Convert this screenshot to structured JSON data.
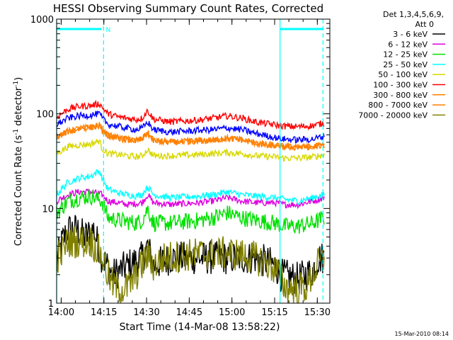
{
  "chart_data": {
    "type": "line",
    "title": "HESSI Observing Summary Count Rates, Corrected",
    "xlabel": "Start Time (14-Mar-08 13:58:22)",
    "ylabel_main": "Corrected Count Rate (s",
    "ylabel_sup1": "-1",
    "ylabel_mid": " detector",
    "ylabel_sup2": "-1",
    "ylabel_end": ")",
    "footer": "15-Mar-2010 08:14",
    "y_scale": "log",
    "ylim": [
      1,
      1000
    ],
    "xlim": [
      0,
      96
    ],
    "x_ticks": [
      {
        "t": 1.6,
        "label": "14:00"
      },
      {
        "t": 16.6,
        "label": "14:15"
      },
      {
        "t": 31.6,
        "label": "14:30"
      },
      {
        "t": 46.6,
        "label": "14:45"
      },
      {
        "t": 61.6,
        "label": "15:00"
      },
      {
        "t": 76.6,
        "label": "15:15"
      },
      {
        "t": 91.6,
        "label": "15:30"
      }
    ],
    "y_ticks": [
      {
        "v": 1,
        "label": "1"
      },
      {
        "v": 10,
        "label": "10"
      },
      {
        "v": 100,
        "label": "100"
      },
      {
        "v": 1000,
        "label": "1000"
      }
    ],
    "legend_header": [
      "Det 1,3,4,5,6,9,",
      "Att 0"
    ],
    "legend_placement": "right",
    "flag_label": "N",
    "markers": {
      "solid_cyan_x": [
        0,
        78.5
      ],
      "dashed_cyan_x": [
        16.5,
        93.6
      ],
      "top_bars": [
        [
          0,
          15.8
        ],
        [
          78.5,
          93.6
        ]
      ]
    },
    "series": [
      {
        "name": "3 - 6 keV",
        "color": "#000000",
        "points": [
          [
            0,
            2.8
          ],
          [
            2,
            4.5
          ],
          [
            4,
            6
          ],
          [
            7,
            6
          ],
          [
            10,
            5
          ],
          [
            13,
            6
          ],
          [
            16,
            3
          ],
          [
            20,
            2
          ],
          [
            25,
            2.5
          ],
          [
            30,
            3
          ],
          [
            32,
            4
          ],
          [
            34,
            2.5
          ],
          [
            40,
            3
          ],
          [
            50,
            3
          ],
          [
            60,
            3
          ],
          [
            70,
            3
          ],
          [
            77,
            2.5
          ],
          [
            78.5,
            2
          ],
          [
            85,
            1.8
          ],
          [
            90,
            2.2
          ],
          [
            92,
            3
          ],
          [
            94,
            3
          ]
        ]
      },
      {
        "name": "6 - 12 keV",
        "color": "#e000e0",
        "points": [
          [
            0,
            12
          ],
          [
            4,
            14
          ],
          [
            8,
            15
          ],
          [
            12,
            15
          ],
          [
            16,
            14
          ],
          [
            18,
            12
          ],
          [
            25,
            11
          ],
          [
            30,
            11.5
          ],
          [
            32,
            14
          ],
          [
            34,
            11.5
          ],
          [
            40,
            11
          ],
          [
            50,
            11.5
          ],
          [
            55,
            12
          ],
          [
            60,
            13
          ],
          [
            65,
            12
          ],
          [
            70,
            11.5
          ],
          [
            77,
            11.5
          ],
          [
            80,
            11
          ],
          [
            85,
            11
          ],
          [
            90,
            12
          ],
          [
            94,
            13
          ]
        ]
      },
      {
        "name": "12 - 25 keV",
        "color": "#00e000",
        "points": [
          [
            0,
            9
          ],
          [
            4,
            12
          ],
          [
            8,
            13
          ],
          [
            12,
            13.5
          ],
          [
            16,
            12
          ],
          [
            18,
            8
          ],
          [
            22,
            7.5
          ],
          [
            28,
            7
          ],
          [
            30,
            7.5
          ],
          [
            32,
            10
          ],
          [
            34,
            7
          ],
          [
            40,
            7
          ],
          [
            50,
            7.5
          ],
          [
            55,
            8
          ],
          [
            60,
            9
          ],
          [
            65,
            8
          ],
          [
            70,
            7.5
          ],
          [
            77,
            7
          ],
          [
            80,
            6.5
          ],
          [
            85,
            6.5
          ],
          [
            90,
            7
          ],
          [
            94,
            8
          ]
        ]
      },
      {
        "name": "25 - 50 keV",
        "color": "#00ffff",
        "points": [
          [
            0,
            14
          ],
          [
            4,
            19
          ],
          [
            8,
            21
          ],
          [
            12,
            22
          ],
          [
            15,
            25
          ],
          [
            16,
            21
          ],
          [
            18,
            16
          ],
          [
            22,
            14.5
          ],
          [
            28,
            13.5
          ],
          [
            30,
            14
          ],
          [
            32,
            17
          ],
          [
            34,
            14
          ],
          [
            40,
            13
          ],
          [
            50,
            13.5
          ],
          [
            55,
            14
          ],
          [
            60,
            15
          ],
          [
            65,
            14
          ],
          [
            70,
            13.5
          ],
          [
            77,
            13
          ],
          [
            80,
            12.5
          ],
          [
            85,
            12
          ],
          [
            90,
            13
          ],
          [
            94,
            14
          ]
        ]
      },
      {
        "name": "50 - 100 keV",
        "color": "#d8d800",
        "points": [
          [
            0,
            38
          ],
          [
            4,
            45
          ],
          [
            8,
            47
          ],
          [
            12,
            48
          ],
          [
            15,
            52
          ],
          [
            16,
            43
          ],
          [
            18,
            38
          ],
          [
            22,
            37
          ],
          [
            28,
            35
          ],
          [
            30,
            36
          ],
          [
            32,
            42
          ],
          [
            34,
            36
          ],
          [
            40,
            36
          ],
          [
            50,
            37
          ],
          [
            55,
            38
          ],
          [
            60,
            39
          ],
          [
            65,
            38
          ],
          [
            70,
            36
          ],
          [
            77,
            35
          ],
          [
            80,
            34
          ],
          [
            85,
            34
          ],
          [
            90,
            35
          ],
          [
            94,
            37
          ]
        ]
      },
      {
        "name": "100 - 300 keV",
        "color": "#ff0000",
        "points": [
          [
            0,
            92
          ],
          [
            4,
            112
          ],
          [
            8,
            120
          ],
          [
            12,
            122
          ],
          [
            15,
            128
          ],
          [
            16,
            118
          ],
          [
            18,
            100
          ],
          [
            22,
            92
          ],
          [
            28,
            87
          ],
          [
            30,
            90
          ],
          [
            32,
            108
          ],
          [
            34,
            88
          ],
          [
            40,
            82
          ],
          [
            50,
            86
          ],
          [
            55,
            90
          ],
          [
            60,
            95
          ],
          [
            65,
            90
          ],
          [
            70,
            82
          ],
          [
            77,
            76
          ],
          [
            80,
            74
          ],
          [
            85,
            73
          ],
          [
            90,
            75
          ],
          [
            94,
            80
          ]
        ]
      },
      {
        "name": "300 - 800 keV",
        "color": "#ff8000",
        "points": [
          [
            0,
            57
          ],
          [
            4,
            65
          ],
          [
            8,
            70
          ],
          [
            12,
            72
          ],
          [
            15,
            75
          ],
          [
            16,
            68
          ],
          [
            18,
            59
          ],
          [
            22,
            55
          ],
          [
            28,
            52
          ],
          [
            30,
            54
          ],
          [
            32,
            63
          ],
          [
            34,
            52
          ],
          [
            40,
            50
          ],
          [
            50,
            52
          ],
          [
            55,
            53
          ],
          [
            60,
            55
          ],
          [
            65,
            53
          ],
          [
            70,
            49
          ],
          [
            77,
            46
          ],
          [
            80,
            45
          ],
          [
            85,
            44
          ],
          [
            90,
            45
          ],
          [
            94,
            47
          ]
        ]
      },
      {
        "name": "800 - 7000 keV",
        "color": "#ff8000",
        "points": [
          [
            0,
            57
          ],
          [
            4,
            65
          ],
          [
            8,
            70
          ],
          [
            12,
            72
          ],
          [
            15,
            75
          ],
          [
            16,
            68
          ],
          [
            18,
            59
          ],
          [
            22,
            55
          ],
          [
            28,
            52
          ],
          [
            30,
            54
          ],
          [
            32,
            63
          ],
          [
            34,
            52
          ],
          [
            40,
            50
          ],
          [
            50,
            52
          ],
          [
            55,
            53
          ],
          [
            60,
            55
          ],
          [
            65,
            53
          ],
          [
            70,
            49
          ],
          [
            77,
            46
          ],
          [
            80,
            45
          ],
          [
            85,
            44
          ],
          [
            90,
            45
          ],
          [
            94,
            47
          ]
        ]
      },
      {
        "name": "7000 - 20000 keV",
        "color": "#808000",
        "points": [
          [
            0,
            3
          ],
          [
            2,
            3.5
          ],
          [
            4,
            4.5
          ],
          [
            8,
            4.5
          ],
          [
            12,
            4.5
          ],
          [
            15,
            3.5
          ],
          [
            16,
            3
          ],
          [
            18,
            2
          ],
          [
            20,
            1.5
          ],
          [
            24,
            1.4
          ],
          [
            26,
            1.6
          ],
          [
            28,
            2
          ],
          [
            30,
            2.5
          ],
          [
            32,
            3.2
          ],
          [
            34,
            2.5
          ],
          [
            38,
            3
          ],
          [
            45,
            3.2
          ],
          [
            50,
            3.3
          ],
          [
            55,
            3.3
          ],
          [
            60,
            3.4
          ],
          [
            65,
            3.2
          ],
          [
            70,
            3
          ],
          [
            74,
            2.6
          ],
          [
            76,
            2.4
          ],
          [
            78.5,
            2
          ],
          [
            80,
            1.5
          ],
          [
            84,
            1.4
          ],
          [
            88,
            1.5
          ],
          [
            90,
            2
          ],
          [
            92,
            2.6
          ],
          [
            94,
            2.8
          ]
        ]
      },
      {
        "name": "",
        "color": "#0000ff",
        "points": [
          [
            0,
            77
          ],
          [
            4,
            90
          ],
          [
            8,
            95
          ],
          [
            12,
            97
          ],
          [
            15,
            100
          ],
          [
            16,
            90
          ],
          [
            18,
            78
          ],
          [
            22,
            73
          ],
          [
            28,
            68
          ],
          [
            30,
            70
          ],
          [
            32,
            82
          ],
          [
            34,
            68
          ],
          [
            40,
            64
          ],
          [
            50,
            67
          ],
          [
            55,
            68
          ],
          [
            60,
            71
          ],
          [
            65,
            68
          ],
          [
            70,
            62
          ],
          [
            77,
            56
          ],
          [
            80,
            54
          ],
          [
            85,
            53
          ],
          [
            90,
            54
          ],
          [
            94,
            58
          ]
        ]
      }
    ]
  },
  "legend_rows": [
    {
      "label": "3 - 6 keV",
      "color": "#000000"
    },
    {
      "label": "6 - 12 keV",
      "color": "#e000e0"
    },
    {
      "label": "12 - 25 keV",
      "color": "#00e000"
    },
    {
      "label": "25 - 50 keV",
      "color": "#00ffff"
    },
    {
      "label": "50 - 100 keV",
      "color": "#d8d800"
    },
    {
      "label": "100 - 300 keV",
      "color": "#ff0000"
    },
    {
      "label": "300 - 800 keV",
      "color": "#ff8000"
    },
    {
      "label": "800 - 7000 keV",
      "color": "#ff8000"
    },
    {
      "label": "7000 - 20000 keV",
      "color": "#808000"
    }
  ],
  "colors": {
    "marker": "#00ffff",
    "frame": "#000000",
    "background": "#ffffff"
  }
}
